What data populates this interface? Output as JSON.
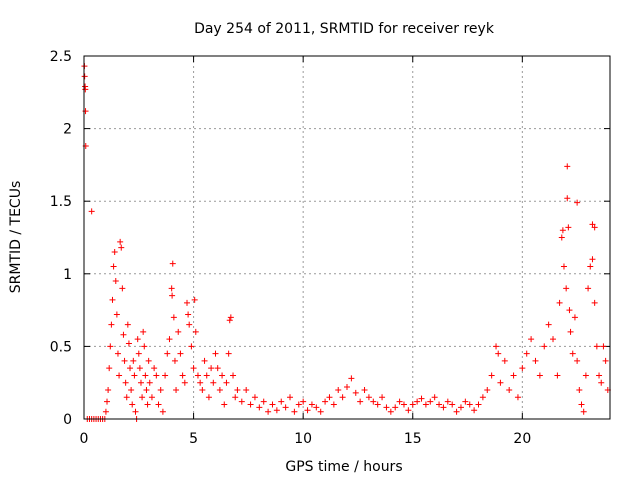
{
  "chart_data": {
    "type": "scatter",
    "title": "Day 254 of 2011, SRMTID for receiver reyk",
    "xlabel": "GPS time / hours",
    "ylabel": "SRMTID / TECUs",
    "xlim": [
      0,
      24
    ],
    "ylim": [
      0,
      2.5
    ],
    "xticks": [
      0,
      5,
      10,
      15,
      20
    ],
    "xtick_labels": [
      "0",
      "5",
      "10",
      "15",
      "20"
    ],
    "yticks": [
      0,
      0.5,
      1,
      1.5,
      2,
      2.5
    ],
    "ytick_labels": [
      "0",
      "0.5",
      "1",
      "1.5",
      "2",
      "2.5"
    ],
    "grid": true,
    "marker": "+",
    "color": "#ff0000",
    "series": [
      {
        "points": [
          [
            0.02,
            2.43
          ],
          [
            0.03,
            2.36
          ],
          [
            0.05,
            2.29
          ],
          [
            0.06,
            2.27
          ],
          [
            0.07,
            2.12
          ],
          [
            0.08,
            1.88
          ],
          [
            0.15,
            0.0
          ],
          [
            0.25,
            0.0
          ],
          [
            0.35,
            0.0
          ],
          [
            0.45,
            0.0
          ],
          [
            0.55,
            0.0
          ],
          [
            0.65,
            0.0
          ],
          [
            0.75,
            0.0
          ],
          [
            0.85,
            0.0
          ],
          [
            0.95,
            0.0
          ],
          [
            0.35,
            1.43
          ],
          [
            1.0,
            0.05
          ],
          [
            1.05,
            0.12
          ],
          [
            1.1,
            0.2
          ],
          [
            1.15,
            0.35
          ],
          [
            1.2,
            0.5
          ],
          [
            1.25,
            0.65
          ],
          [
            1.3,
            0.82
          ],
          [
            1.35,
            1.05
          ],
          [
            1.4,
            1.15
          ],
          [
            1.45,
            0.95
          ],
          [
            1.5,
            0.72
          ],
          [
            1.55,
            0.45
          ],
          [
            1.6,
            0.3
          ],
          [
            1.65,
            1.22
          ],
          [
            1.7,
            1.18
          ],
          [
            1.75,
            0.9
          ],
          [
            1.8,
            0.58
          ],
          [
            1.85,
            0.4
          ],
          [
            1.9,
            0.25
          ],
          [
            1.95,
            0.15
          ],
          [
            2.0,
            0.65
          ],
          [
            2.05,
            0.52
          ],
          [
            2.1,
            0.35
          ],
          [
            2.15,
            0.2
          ],
          [
            2.2,
            0.1
          ],
          [
            2.25,
            0.4
          ],
          [
            2.3,
            0.3
          ],
          [
            2.35,
            0.05
          ],
          [
            2.4,
            0.0
          ],
          [
            2.45,
            0.55
          ],
          [
            2.5,
            0.45
          ],
          [
            2.55,
            0.35
          ],
          [
            2.6,
            0.25
          ],
          [
            2.65,
            0.15
          ],
          [
            2.7,
            0.6
          ],
          [
            2.75,
            0.5
          ],
          [
            2.8,
            0.3
          ],
          [
            2.85,
            0.2
          ],
          [
            2.9,
            0.1
          ],
          [
            2.95,
            0.4
          ],
          [
            3.0,
            0.25
          ],
          [
            3.1,
            0.15
          ],
          [
            3.2,
            0.35
          ],
          [
            3.3,
            0.3
          ],
          [
            3.4,
            0.1
          ],
          [
            3.5,
            0.2
          ],
          [
            3.6,
            0.05
          ],
          [
            3.7,
            0.3
          ],
          [
            3.8,
            0.45
          ],
          [
            3.9,
            0.55
          ],
          [
            4.0,
            0.9
          ],
          [
            4.02,
            0.85
          ],
          [
            4.05,
            1.07
          ],
          [
            4.1,
            0.7
          ],
          [
            4.15,
            0.4
          ],
          [
            4.2,
            0.2
          ],
          [
            4.3,
            0.6
          ],
          [
            4.4,
            0.45
          ],
          [
            4.5,
            0.3
          ],
          [
            4.6,
            0.25
          ],
          [
            4.7,
            0.8
          ],
          [
            4.75,
            0.72
          ],
          [
            4.8,
            0.65
          ],
          [
            4.9,
            0.5
          ],
          [
            5.0,
            0.35
          ],
          [
            5.05,
            0.82
          ],
          [
            5.1,
            0.6
          ],
          [
            5.2,
            0.3
          ],
          [
            5.3,
            0.25
          ],
          [
            5.4,
            0.2
          ],
          [
            5.5,
            0.4
          ],
          [
            5.6,
            0.3
          ],
          [
            5.7,
            0.15
          ],
          [
            5.8,
            0.35
          ],
          [
            5.9,
            0.25
          ],
          [
            6.0,
            0.45
          ],
          [
            6.1,
            0.35
          ],
          [
            6.2,
            0.2
          ],
          [
            6.3,
            0.3
          ],
          [
            6.4,
            0.1
          ],
          [
            6.5,
            0.25
          ],
          [
            6.6,
            0.45
          ],
          [
            6.65,
            0.68
          ],
          [
            6.7,
            0.7
          ],
          [
            6.8,
            0.3
          ],
          [
            6.9,
            0.15
          ],
          [
            7.0,
            0.2
          ],
          [
            7.2,
            0.12
          ],
          [
            7.4,
            0.2
          ],
          [
            7.6,
            0.1
          ],
          [
            7.8,
            0.15
          ],
          [
            8.0,
            0.08
          ],
          [
            8.2,
            0.12
          ],
          [
            8.4,
            0.05
          ],
          [
            8.6,
            0.1
          ],
          [
            8.8,
            0.06
          ],
          [
            9.0,
            0.12
          ],
          [
            9.2,
            0.08
          ],
          [
            9.4,
            0.15
          ],
          [
            9.6,
            0.05
          ],
          [
            9.8,
            0.1
          ],
          [
            10.0,
            0.12
          ],
          [
            10.2,
            0.06
          ],
          [
            10.4,
            0.1
          ],
          [
            10.6,
            0.08
          ],
          [
            10.8,
            0.05
          ],
          [
            11.0,
            0.12
          ],
          [
            11.2,
            0.15
          ],
          [
            11.4,
            0.1
          ],
          [
            11.6,
            0.2
          ],
          [
            11.8,
            0.15
          ],
          [
            12.0,
            0.22
          ],
          [
            12.2,
            0.28
          ],
          [
            12.4,
            0.18
          ],
          [
            12.6,
            0.12
          ],
          [
            12.8,
            0.2
          ],
          [
            13.0,
            0.15
          ],
          [
            13.2,
            0.12
          ],
          [
            13.4,
            0.1
          ],
          [
            13.6,
            0.15
          ],
          [
            13.8,
            0.08
          ],
          [
            14.0,
            0.05
          ],
          [
            14.2,
            0.08
          ],
          [
            14.4,
            0.12
          ],
          [
            14.6,
            0.1
          ],
          [
            14.8,
            0.06
          ],
          [
            15.0,
            0.1
          ],
          [
            15.2,
            0.12
          ],
          [
            15.4,
            0.14
          ],
          [
            15.6,
            0.1
          ],
          [
            15.8,
            0.12
          ],
          [
            16.0,
            0.15
          ],
          [
            16.2,
            0.1
          ],
          [
            16.4,
            0.08
          ],
          [
            16.6,
            0.12
          ],
          [
            16.8,
            0.1
          ],
          [
            17.0,
            0.05
          ],
          [
            17.2,
            0.08
          ],
          [
            17.4,
            0.12
          ],
          [
            17.6,
            0.1
          ],
          [
            17.8,
            0.06
          ],
          [
            18.0,
            0.1
          ],
          [
            18.2,
            0.15
          ],
          [
            18.4,
            0.2
          ],
          [
            18.6,
            0.3
          ],
          [
            18.8,
            0.5
          ],
          [
            18.9,
            0.45
          ],
          [
            19.0,
            0.25
          ],
          [
            19.2,
            0.4
          ],
          [
            19.4,
            0.2
          ],
          [
            19.6,
            0.3
          ],
          [
            19.8,
            0.15
          ],
          [
            20.0,
            0.35
          ],
          [
            20.2,
            0.45
          ],
          [
            20.4,
            0.55
          ],
          [
            20.6,
            0.4
          ],
          [
            20.8,
            0.3
          ],
          [
            21.0,
            0.5
          ],
          [
            21.2,
            0.65
          ],
          [
            21.4,
            0.55
          ],
          [
            21.6,
            0.3
          ],
          [
            21.7,
            0.8
          ],
          [
            21.8,
            1.25
          ],
          [
            21.85,
            1.3
          ],
          [
            21.9,
            1.05
          ],
          [
            22.0,
            0.9
          ],
          [
            22.05,
            1.52
          ],
          [
            22.1,
            1.32
          ],
          [
            22.15,
            0.75
          ],
          [
            22.2,
            0.6
          ],
          [
            22.3,
            0.45
          ],
          [
            22.4,
            0.7
          ],
          [
            22.5,
            0.4
          ],
          [
            22.6,
            0.2
          ],
          [
            22.7,
            0.1
          ],
          [
            22.8,
            0.05
          ],
          [
            22.9,
            0.3
          ],
          [
            23.0,
            0.9
          ],
          [
            23.1,
            1.05
          ],
          [
            23.2,
            1.1
          ],
          [
            23.3,
            0.8
          ],
          [
            23.4,
            0.5
          ],
          [
            23.5,
            0.3
          ],
          [
            23.6,
            0.25
          ],
          [
            23.7,
            0.5
          ],
          [
            23.8,
            0.4
          ],
          [
            23.9,
            0.2
          ],
          [
            22.5,
            1.49
          ],
          [
            22.05,
            1.74
          ],
          [
            23.2,
            1.34
          ],
          [
            23.3,
            1.32
          ]
        ]
      }
    ]
  }
}
